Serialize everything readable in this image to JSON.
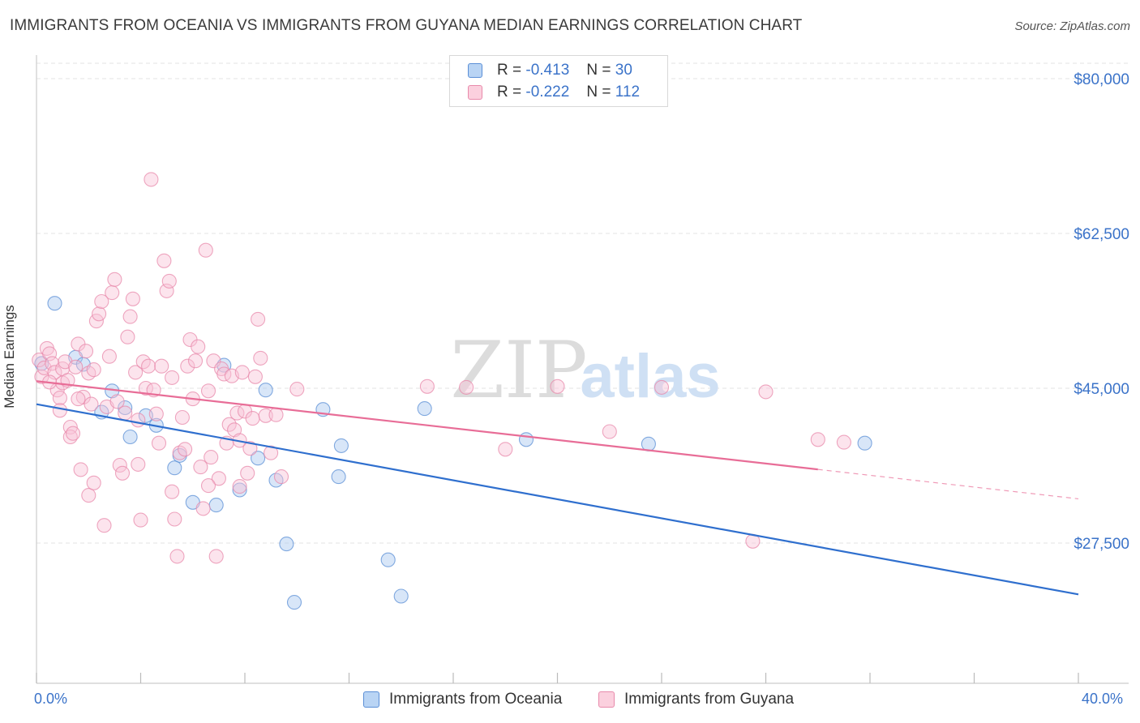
{
  "title": "IMMIGRANTS FROM OCEANIA VS IMMIGRANTS FROM GUYANA MEDIAN EARNINGS CORRELATION CHART",
  "source": "Source: ZipAtlas.com",
  "watermark": {
    "zip": "ZIP",
    "atlas": "atlas"
  },
  "chart_data": {
    "type": "scatter",
    "xlabel": "",
    "ylabel": "Median Earnings",
    "xlim": [
      0,
      40
    ],
    "ylim": [
      10000,
      82500
    ],
    "x_tick_labels": {
      "left": "0.0%",
      "right": "40.0%"
    },
    "y_ticks": [
      {
        "value": 80000,
        "label": "$80,000"
      },
      {
        "value": 62500,
        "label": "$62,500"
      },
      {
        "value": 45000,
        "label": "$45,000"
      },
      {
        "value": 27500,
        "label": "$27,500"
      }
    ],
    "grid": true,
    "series": [
      {
        "name": "Immigrants from Oceania",
        "color": "#a8c8f0",
        "stroke": "#5b8fd6",
        "line_color": "#2f6fce",
        "stats": {
          "r_label": "R =",
          "r": "-0.413",
          "n_label": "N =",
          "n": "30"
        },
        "trend": {
          "x0": 0,
          "y0": 43200,
          "x1": 40,
          "y1": 21700,
          "solid_to": 40
        },
        "points": [
          [
            0.2,
            47800
          ],
          [
            0.7,
            54600
          ],
          [
            1.5,
            48500
          ],
          [
            1.8,
            47700
          ],
          [
            2.5,
            42300
          ],
          [
            2.9,
            44700
          ],
          [
            3.4,
            42800
          ],
          [
            3.6,
            39500
          ],
          [
            4.2,
            41900
          ],
          [
            4.6,
            40800
          ],
          [
            5.3,
            36000
          ],
          [
            5.5,
            37400
          ],
          [
            6.0,
            32100
          ],
          [
            6.9,
            31800
          ],
          [
            7.2,
            47600
          ],
          [
            7.8,
            33500
          ],
          [
            8.5,
            37100
          ],
          [
            8.8,
            44800
          ],
          [
            9.2,
            34600
          ],
          [
            9.6,
            27400
          ],
          [
            9.9,
            20800
          ],
          [
            11.0,
            42600
          ],
          [
            11.6,
            35000
          ],
          [
            11.7,
            38500
          ],
          [
            13.5,
            25600
          ],
          [
            14.0,
            21500
          ],
          [
            14.9,
            42700
          ],
          [
            18.8,
            39200
          ],
          [
            23.5,
            38700
          ],
          [
            31.8,
            38800
          ]
        ]
      },
      {
        "name": "Immigrants from Guyana",
        "color": "#f9c3d6",
        "stroke": "#e88aab",
        "line_color": "#e86d97",
        "stats": {
          "r_label": "R =",
          "r": "-0.222",
          "n_label": "N =",
          "n": "112"
        },
        "trend": {
          "x0": 0,
          "y0": 45800,
          "x1": 40,
          "y1": 32500,
          "solid_to": 30
        },
        "points": [
          [
            0.1,
            48200
          ],
          [
            0.2,
            46300
          ],
          [
            0.3,
            47300
          ],
          [
            0.4,
            49500
          ],
          [
            0.5,
            48900
          ],
          [
            0.6,
            47800
          ],
          [
            0.7,
            46800
          ],
          [
            0.8,
            44800
          ],
          [
            0.9,
            43900
          ],
          [
            0.9,
            42500
          ],
          [
            1.0,
            45600
          ],
          [
            1.0,
            47200
          ],
          [
            1.1,
            48000
          ],
          [
            1.2,
            45900
          ],
          [
            1.3,
            40600
          ],
          [
            1.3,
            39500
          ],
          [
            1.4,
            39900
          ],
          [
            1.5,
            47400
          ],
          [
            1.6,
            50000
          ],
          [
            1.7,
            35800
          ],
          [
            1.8,
            44000
          ],
          [
            1.9,
            49200
          ],
          [
            2.0,
            32900
          ],
          [
            2.0,
            46700
          ],
          [
            2.1,
            43200
          ],
          [
            2.2,
            47100
          ],
          [
            2.3,
            52600
          ],
          [
            2.4,
            53400
          ],
          [
            2.5,
            54800
          ],
          [
            2.6,
            29500
          ],
          [
            2.7,
            42900
          ],
          [
            2.8,
            48600
          ],
          [
            2.9,
            55800
          ],
          [
            3.0,
            57300
          ],
          [
            3.1,
            43500
          ],
          [
            3.2,
            36300
          ],
          [
            3.3,
            35400
          ],
          [
            3.4,
            42200
          ],
          [
            3.5,
            50800
          ],
          [
            3.6,
            53100
          ],
          [
            3.7,
            55100
          ],
          [
            3.8,
            46800
          ],
          [
            3.9,
            36400
          ],
          [
            4.0,
            30100
          ],
          [
            4.1,
            48000
          ],
          [
            4.2,
            45000
          ],
          [
            4.3,
            47500
          ],
          [
            4.4,
            68600
          ],
          [
            4.5,
            44800
          ],
          [
            4.6,
            42100
          ],
          [
            4.7,
            38800
          ],
          [
            4.8,
            47500
          ],
          [
            4.9,
            59400
          ],
          [
            5.0,
            56000
          ],
          [
            5.1,
            57100
          ],
          [
            5.2,
            46200
          ],
          [
            5.3,
            30200
          ],
          [
            5.4,
            26000
          ],
          [
            5.5,
            37700
          ],
          [
            5.6,
            41700
          ],
          [
            5.7,
            38100
          ],
          [
            5.8,
            47500
          ],
          [
            5.9,
            50500
          ],
          [
            6.0,
            43800
          ],
          [
            6.1,
            48100
          ],
          [
            6.2,
            49700
          ],
          [
            6.3,
            36100
          ],
          [
            6.4,
            31400
          ],
          [
            6.5,
            60600
          ],
          [
            6.6,
            44700
          ],
          [
            6.7,
            37200
          ],
          [
            6.8,
            48100
          ],
          [
            6.9,
            26000
          ],
          [
            7.0,
            34800
          ],
          [
            7.1,
            47200
          ],
          [
            7.2,
            46600
          ],
          [
            7.3,
            38800
          ],
          [
            7.4,
            40900
          ],
          [
            7.5,
            46400
          ],
          [
            7.6,
            40300
          ],
          [
            7.7,
            42200
          ],
          [
            7.8,
            39100
          ],
          [
            7.9,
            46800
          ],
          [
            8.0,
            42400
          ],
          [
            8.1,
            35400
          ],
          [
            8.2,
            38200
          ],
          [
            8.3,
            41600
          ],
          [
            8.4,
            46300
          ],
          [
            8.5,
            52800
          ],
          [
            8.6,
            48400
          ],
          [
            8.8,
            41900
          ],
          [
            9.0,
            37700
          ],
          [
            9.2,
            42000
          ],
          [
            9.4,
            35000
          ],
          [
            10.0,
            44900
          ],
          [
            15.0,
            45200
          ],
          [
            16.5,
            45100
          ],
          [
            18.0,
            38100
          ],
          [
            20.0,
            45200
          ],
          [
            22.0,
            40100
          ],
          [
            24.0,
            45100
          ],
          [
            27.5,
            27700
          ],
          [
            28.0,
            44600
          ],
          [
            30.0,
            39200
          ],
          [
            31.0,
            38900
          ],
          [
            0.5,
            45700
          ],
          [
            1.6,
            43800
          ],
          [
            2.2,
            34300
          ],
          [
            3.9,
            41400
          ],
          [
            5.2,
            33300
          ],
          [
            6.6,
            34000
          ],
          [
            7.8,
            33900
          ]
        ]
      }
    ]
  }
}
